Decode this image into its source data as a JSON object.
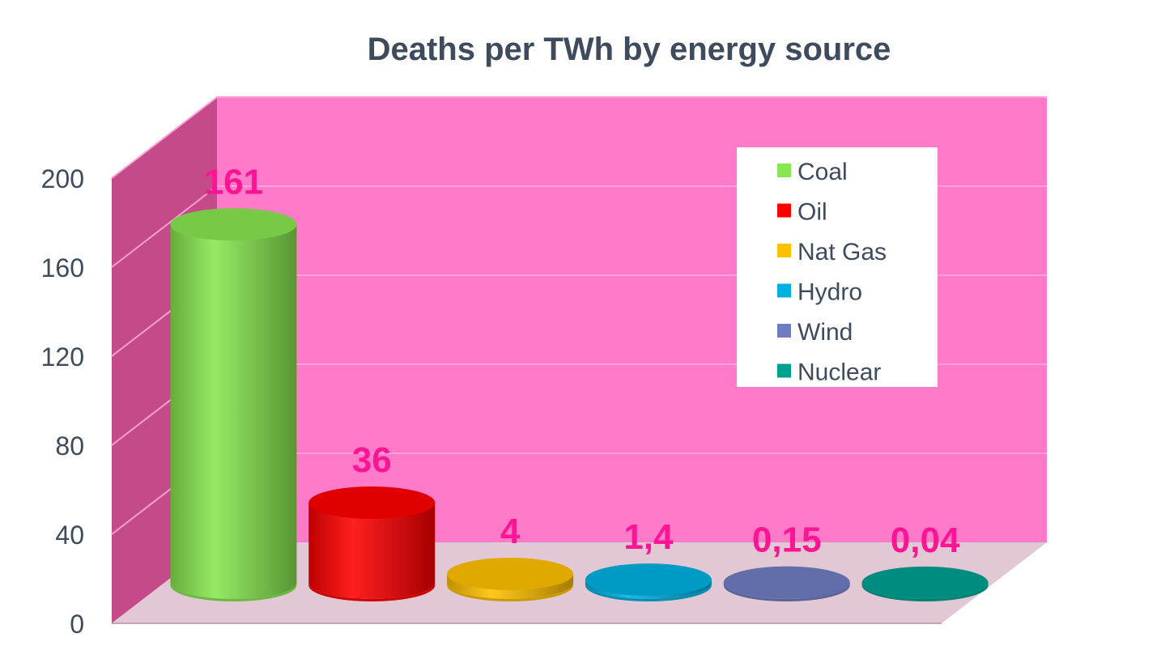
{
  "chart_data": {
    "type": "bar",
    "title": "Deaths per TWh by energy source",
    "xlabel": "",
    "ylabel": "",
    "ylim": [
      0,
      200
    ],
    "yticks": [
      0,
      40,
      80,
      120,
      160,
      200
    ],
    "categories": [
      "Coal",
      "Oil",
      "Nat Gas",
      "Hydro",
      "Wind",
      "Nuclear"
    ],
    "values": [
      161,
      36,
      4,
      1.4,
      0.15,
      0.04
    ],
    "data_labels": [
      "161",
      "36",
      "4",
      "1,4",
      "0,15",
      "0,04"
    ],
    "three_d": true,
    "grid": true,
    "legend": {
      "position": "top-right",
      "entries": [
        "Coal",
        "Oil",
        "Nat Gas",
        "Hydro",
        "Wind",
        "Nuclear"
      ]
    }
  },
  "colors": {
    "title": "#3d4b5c",
    "tick": "#3d4b5c",
    "data_label": "#ff1493",
    "back_wall": "#ff7ac8",
    "side_wall": "#c44a8a",
    "floor": "#e2c8d4",
    "grid": "#ff9fd6",
    "series": [
      "#88e650",
      "#ff0000",
      "#ffc000",
      "#00b0e0",
      "#6f7dc0",
      "#00a090"
    ]
  }
}
